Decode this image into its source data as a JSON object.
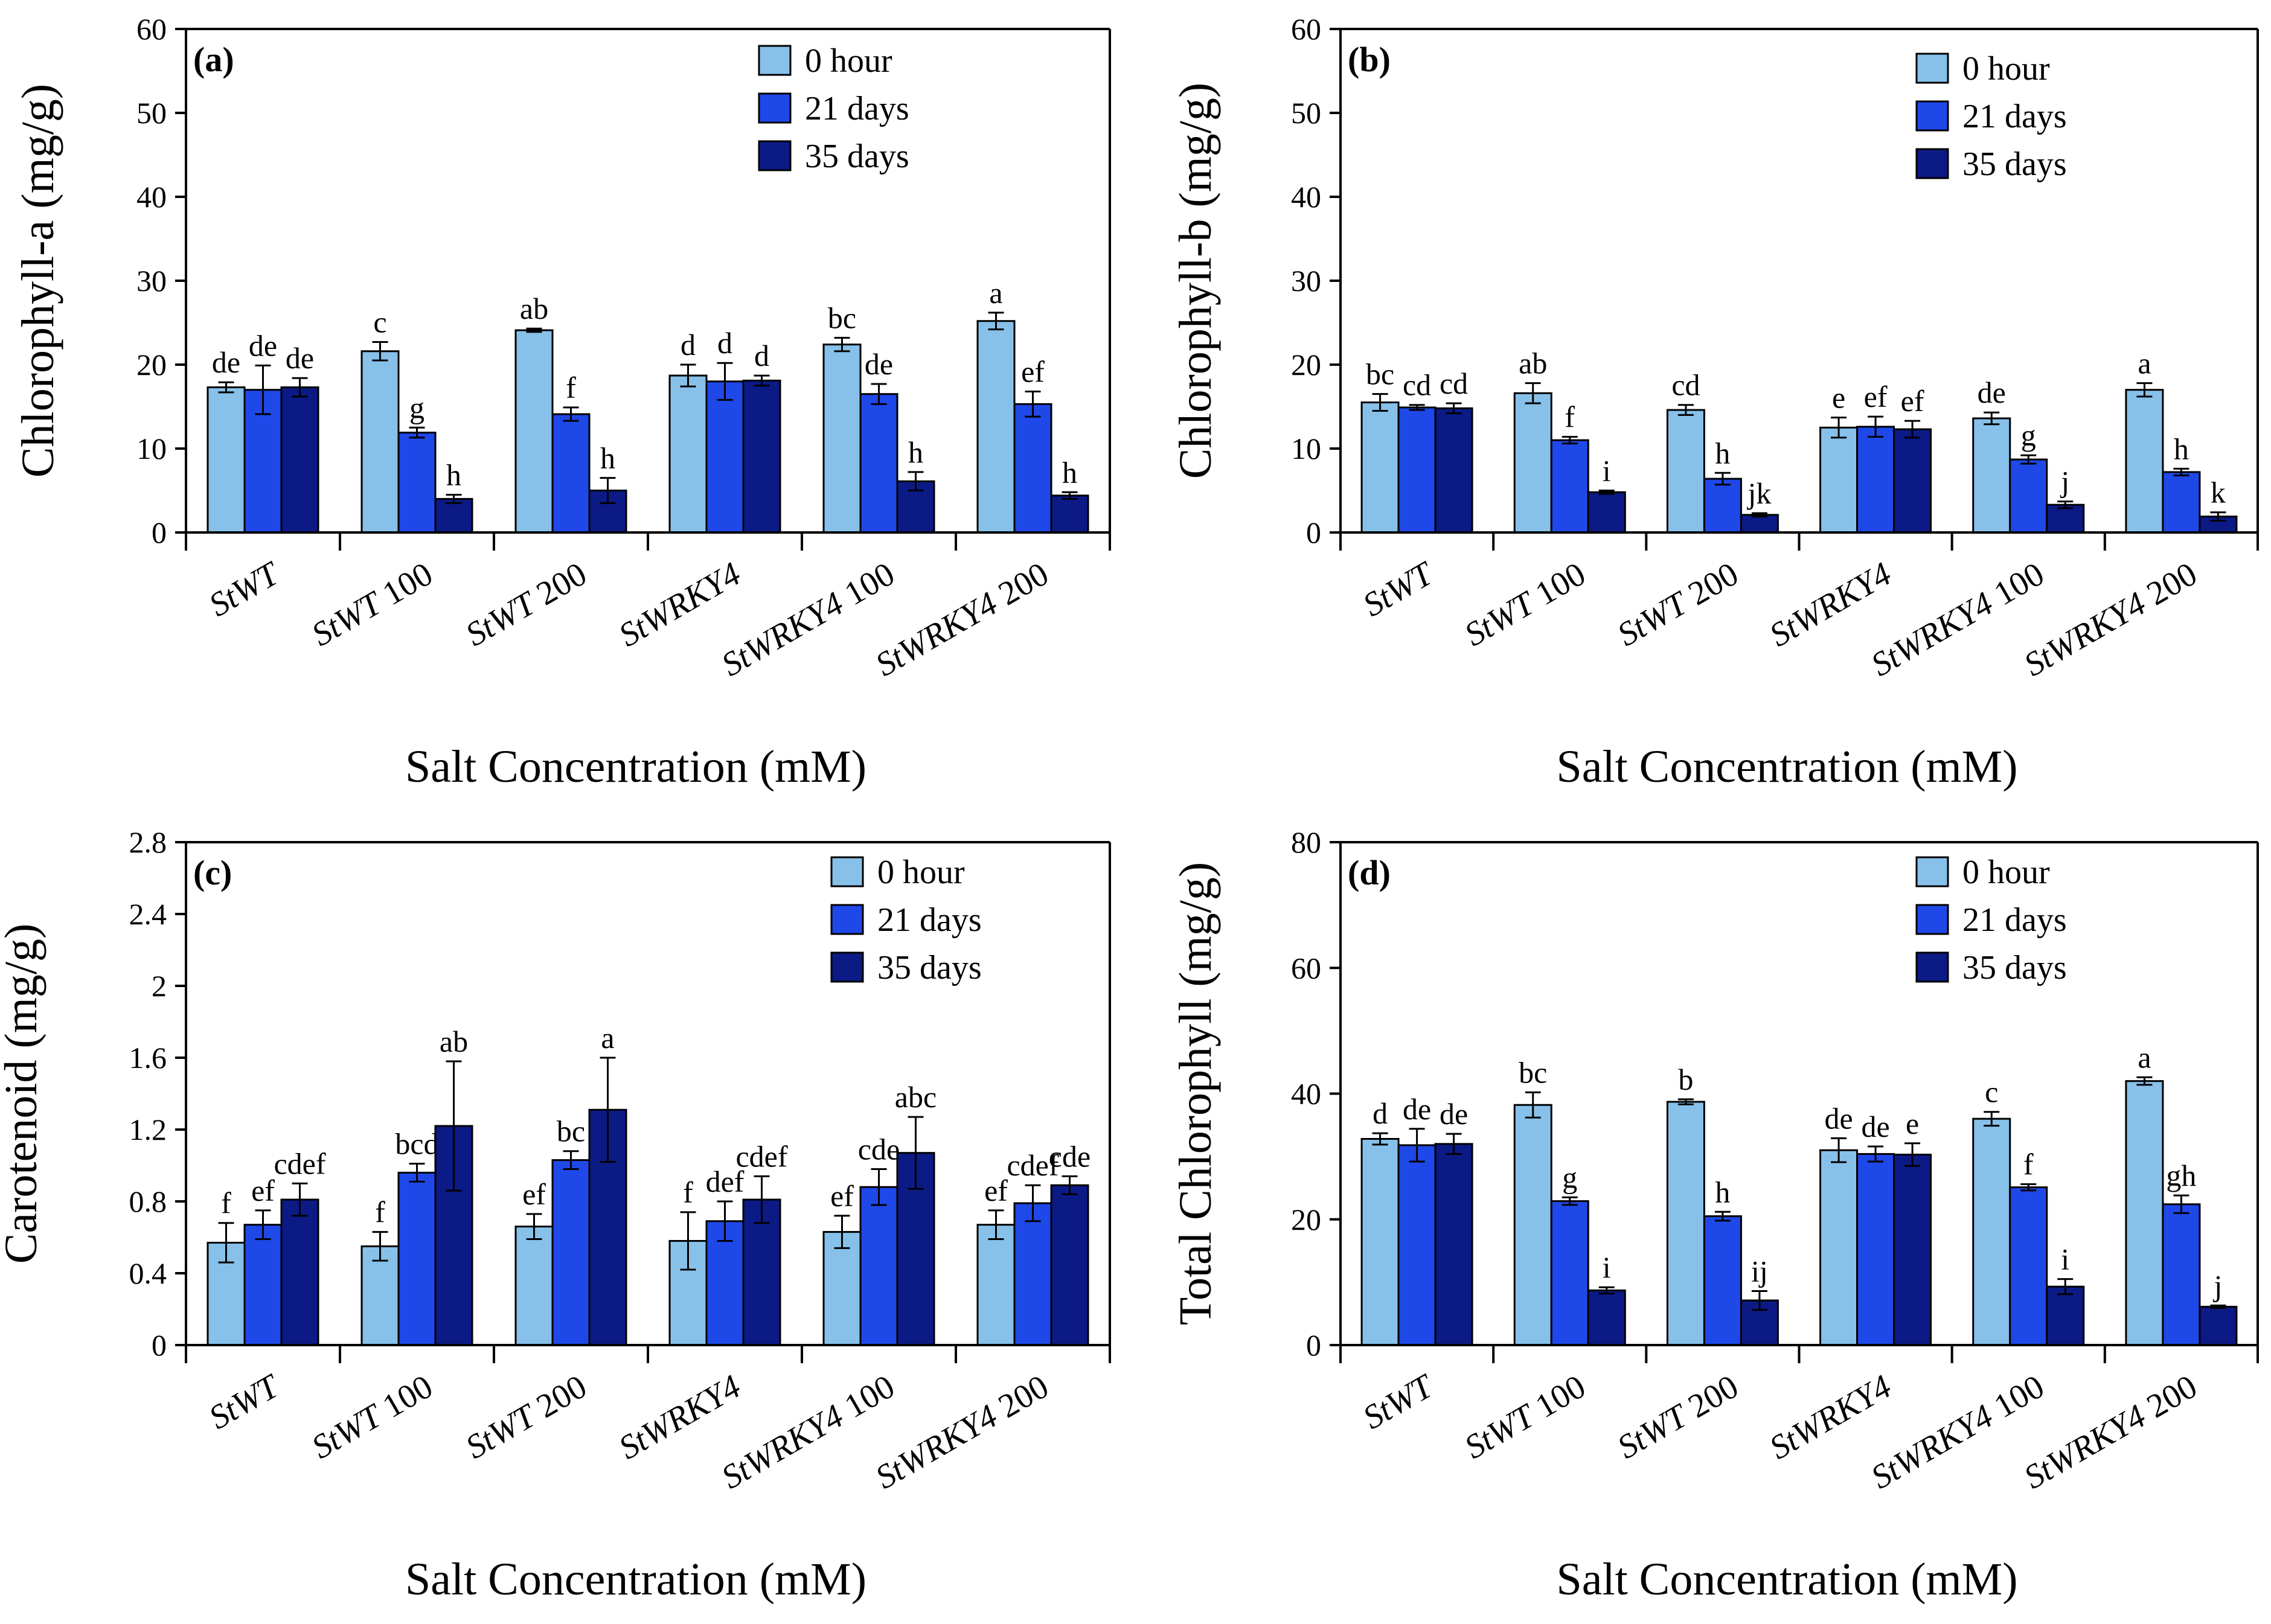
{
  "chart_data": [
    {
      "panel": "(a)",
      "type": "bar",
      "ylabel": "Chlorophyll-a (mg/g)",
      "xlabel": "Salt Concentration (mM)",
      "ylim": [
        0,
        60
      ],
      "yticks": [
        "0",
        "10",
        "20",
        "30",
        "40",
        "50",
        "60"
      ],
      "categories": [
        {
          "prefix": "St",
          "main": "WT",
          "suffix": ""
        },
        {
          "prefix": "St",
          "main": "WT",
          "suffix": " 100"
        },
        {
          "prefix": "St",
          "main": "WT",
          "suffix": " 200"
        },
        {
          "prefix": "St",
          "main": "WRKY4",
          "suffix": ""
        },
        {
          "prefix": "St",
          "main": "WRKY4",
          "suffix": " 100"
        },
        {
          "prefix": "St",
          "main": "WRKY4",
          "suffix": " 200"
        }
      ],
      "series": [
        {
          "name": "0 hour",
          "color": "#87c1ea",
          "values": [
            17.3,
            21.6,
            24.1,
            18.7,
            22.4,
            25.2
          ],
          "errors": [
            0.6,
            1.1,
            0.2,
            1.3,
            0.8,
            1.0
          ],
          "labels": [
            "de",
            "c",
            "ab",
            "d",
            "bc",
            "a"
          ]
        },
        {
          "name": "21 days",
          "color": "#1f48e8",
          "values": [
            17.0,
            11.9,
            14.1,
            18.0,
            16.5,
            15.3
          ],
          "errors": [
            2.9,
            0.6,
            0.8,
            2.2,
            1.2,
            1.5
          ],
          "labels": [
            "de",
            "g",
            "f",
            "d",
            "de",
            "ef"
          ]
        },
        {
          "name": "35 days",
          "color": "#0b1a85",
          "values": [
            17.3,
            4.0,
            5.0,
            18.1,
            6.1,
            4.4
          ],
          "errors": [
            1.1,
            0.5,
            1.5,
            0.6,
            1.1,
            0.4
          ],
          "labels": [
            "de",
            "h",
            "h",
            "d",
            "h",
            "h"
          ]
        }
      ]
    },
    {
      "panel": "(b)",
      "type": "bar",
      "ylabel": "Chlorophyll-b (mg/g)",
      "xlabel": "Salt Concentration (mM)",
      "ylim": [
        0,
        60
      ],
      "yticks": [
        "0",
        "10",
        "20",
        "30",
        "40",
        "50",
        "60"
      ],
      "categories": [
        {
          "prefix": "St",
          "main": "WT",
          "suffix": ""
        },
        {
          "prefix": "St",
          "main": "WT",
          "suffix": " 100"
        },
        {
          "prefix": "St",
          "main": "WT",
          "suffix": " 200"
        },
        {
          "prefix": "St",
          "main": "WRKY4",
          "suffix": ""
        },
        {
          "prefix": "St",
          "main": "WRKY4",
          "suffix": " 100"
        },
        {
          "prefix": "St",
          "main": "WRKY4",
          "suffix": " 200"
        }
      ],
      "series": [
        {
          "name": "0 hour",
          "color": "#87c1ea",
          "values": [
            15.5,
            16.6,
            14.6,
            12.5,
            13.6,
            17.0
          ],
          "errors": [
            1.0,
            1.2,
            0.6,
            1.2,
            0.7,
            0.8
          ],
          "labels": [
            "bc",
            "ab",
            "cd",
            "e",
            "de",
            "a"
          ]
        },
        {
          "name": "21 days",
          "color": "#1f48e8",
          "values": [
            14.9,
            11.0,
            6.4,
            12.6,
            8.7,
            7.2
          ],
          "errors": [
            0.3,
            0.4,
            0.7,
            1.2,
            0.5,
            0.4
          ],
          "labels": [
            "cd",
            "f",
            "h",
            "ef",
            "g",
            "h"
          ]
        },
        {
          "name": "35 days",
          "color": "#0b1a85",
          "values": [
            14.8,
            4.8,
            2.1,
            12.3,
            3.3,
            1.9
          ],
          "errors": [
            0.6,
            0.2,
            0.2,
            1.0,
            0.4,
            0.5
          ],
          "labels": [
            "cd",
            "i",
            "jk",
            "ef",
            "j",
            "k"
          ]
        }
      ]
    },
    {
      "panel": "(c)",
      "type": "bar",
      "ylabel": "Carotenoid (mg/g)",
      "xlabel": "Salt Concentration (mM)",
      "ylim": [
        0,
        2.8
      ],
      "yticks": [
        "0",
        "0.4",
        "0.8",
        "1.2",
        "1.6",
        "2",
        "2.4",
        "2.8"
      ],
      "categories": [
        {
          "prefix": "St",
          "main": "WT",
          "suffix": ""
        },
        {
          "prefix": "St",
          "main": "WT",
          "suffix": " 100"
        },
        {
          "prefix": "St",
          "main": "WT",
          "suffix": " 200"
        },
        {
          "prefix": "St",
          "main": "WRKY4",
          "suffix": ""
        },
        {
          "prefix": "St",
          "main": "WRKY4",
          "suffix": " 100"
        },
        {
          "prefix": "St",
          "main": "WRKY4",
          "suffix": " 200"
        }
      ],
      "series": [
        {
          "name": "0 hour",
          "color": "#87c1ea",
          "values": [
            0.57,
            0.55,
            0.66,
            0.58,
            0.63,
            0.67
          ],
          "errors": [
            0.11,
            0.08,
            0.07,
            0.16,
            0.09,
            0.08
          ],
          "labels": [
            "f",
            "f",
            "ef",
            "f",
            "ef",
            "ef"
          ]
        },
        {
          "name": "21 days",
          "color": "#1f48e8",
          "values": [
            0.67,
            0.96,
            1.03,
            0.69,
            0.88,
            0.79
          ],
          "errors": [
            0.08,
            0.05,
            0.05,
            0.11,
            0.1,
            0.1
          ],
          "labels": [
            "ef",
            "bcd",
            "bc",
            "def",
            "cde",
            "cdef"
          ]
        },
        {
          "name": "35 days",
          "color": "#0b1a85",
          "values": [
            0.81,
            1.22,
            1.31,
            0.81,
            1.07,
            0.89
          ],
          "errors": [
            0.09,
            0.36,
            0.29,
            0.13,
            0.2,
            0.05
          ],
          "labels": [
            "cdef",
            "ab",
            "a",
            "cdef",
            "abc",
            "cde"
          ]
        }
      ]
    },
    {
      "panel": "(d)",
      "type": "bar",
      "ylabel": "Total Chlorophyll (mg/g)",
      "xlabel": "Salt Concentration (mM)",
      "ylim": [
        0,
        80
      ],
      "yticks": [
        "0",
        "20",
        "40",
        "60",
        "80"
      ],
      "categories": [
        {
          "prefix": "St",
          "main": "WT",
          "suffix": ""
        },
        {
          "prefix": "St",
          "main": "WT",
          "suffix": " 100"
        },
        {
          "prefix": "St",
          "main": "WT",
          "suffix": " 200"
        },
        {
          "prefix": "St",
          "main": "WRKY4",
          "suffix": ""
        },
        {
          "prefix": "St",
          "main": "WRKY4",
          "suffix": " 100"
        },
        {
          "prefix": "St",
          "main": "WRKY4",
          "suffix": " 200"
        }
      ],
      "series": [
        {
          "name": "0 hour",
          "color": "#87c1ea",
          "values": [
            32.8,
            38.2,
            38.7,
            31.0,
            36.0,
            42.0
          ],
          "errors": [
            0.9,
            2.0,
            0.4,
            1.9,
            1.1,
            0.6
          ],
          "labels": [
            "d",
            "bc",
            "b",
            "de",
            "c",
            "a"
          ]
        },
        {
          "name": "21 days",
          "color": "#1f48e8",
          "values": [
            31.8,
            22.9,
            20.5,
            30.4,
            25.1,
            22.4
          ],
          "errors": [
            2.6,
            0.6,
            0.7,
            1.2,
            0.5,
            1.4
          ],
          "labels": [
            "de",
            "g",
            "h",
            "de",
            "f",
            "gh"
          ]
        },
        {
          "name": "35 days",
          "color": "#0b1a85",
          "values": [
            32.0,
            8.7,
            7.1,
            30.3,
            9.3,
            6.1
          ],
          "errors": [
            1.6,
            0.5,
            1.5,
            1.8,
            1.2,
            0.2
          ],
          "labels": [
            "de",
            "i",
            "ij",
            "e",
            "i",
            "j"
          ]
        }
      ]
    }
  ]
}
